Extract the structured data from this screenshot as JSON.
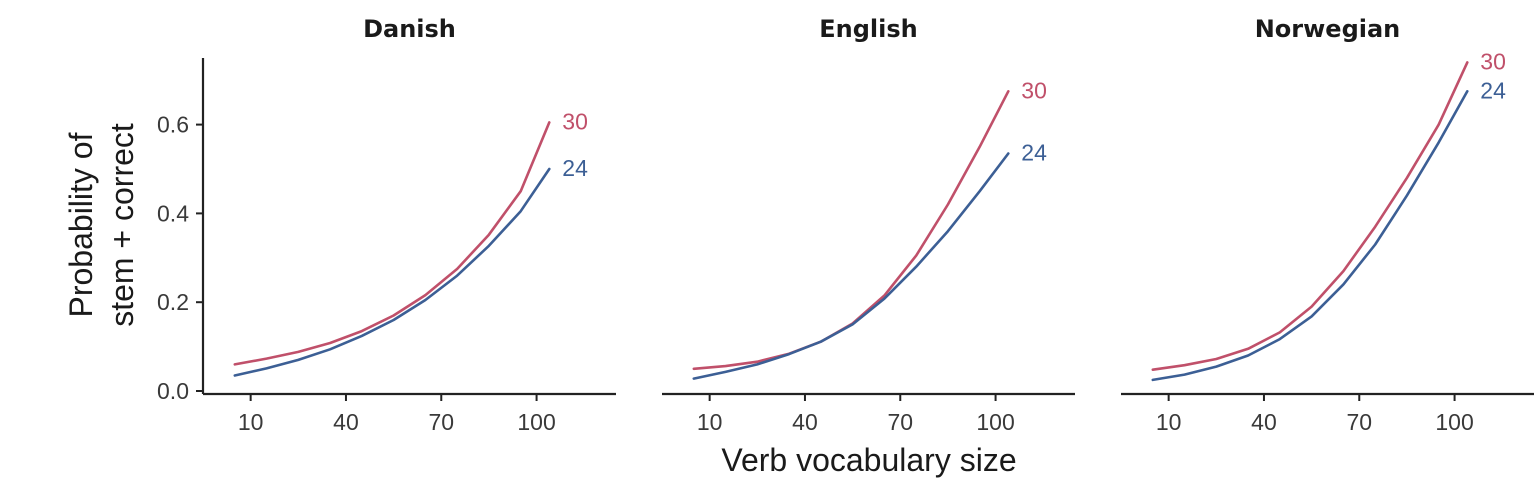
{
  "chart_data": {
    "type": "line",
    "xlabel": "Verb vocabulary size",
    "ylabel_lines": [
      "Probability of",
      "stem + correct"
    ],
    "x_ticks": [
      10,
      40,
      70,
      100
    ],
    "y_ticks": [
      "0.0",
      "0.2",
      "0.4",
      "0.6"
    ],
    "xlim": [
      -5,
      125
    ],
    "ylim": [
      0,
      0.75
    ],
    "grid": false,
    "legend": "direct line labels at line ends",
    "colors": {
      "30": "#c0506a",
      "24": "#3c5f95"
    },
    "panels": [
      {
        "title": "Danish",
        "series": [
          {
            "name": "30",
            "x": [
              5,
              15,
              25,
              35,
              45,
              55,
              65,
              75,
              85,
              95,
              104
            ],
            "y": [
              0.06,
              0.073,
              0.088,
              0.108,
              0.135,
              0.17,
              0.216,
              0.275,
              0.352,
              0.45,
              0.605
            ]
          },
          {
            "name": "24",
            "x": [
              5,
              15,
              25,
              35,
              45,
              55,
              65,
              75,
              85,
              95,
              104
            ],
            "y": [
              0.035,
              0.051,
              0.07,
              0.094,
              0.124,
              0.16,
              0.205,
              0.26,
              0.327,
              0.405,
              0.5
            ]
          }
        ]
      },
      {
        "title": "English",
        "series": [
          {
            "name": "30",
            "x": [
              5,
              15,
              25,
              35,
              45,
              55,
              65,
              75,
              85,
              95,
              104
            ],
            "y": [
              0.05,
              0.056,
              0.066,
              0.084,
              0.111,
              0.152,
              0.215,
              0.305,
              0.42,
              0.55,
              0.675
            ]
          },
          {
            "name": "24",
            "x": [
              5,
              15,
              25,
              35,
              45,
              55,
              65,
              75,
              85,
              95,
              104
            ],
            "y": [
              0.028,
              0.043,
              0.06,
              0.083,
              0.111,
              0.15,
              0.208,
              0.28,
              0.36,
              0.45,
              0.535
            ]
          }
        ]
      },
      {
        "title": "Norwegian",
        "series": [
          {
            "name": "30",
            "x": [
              5,
              15,
              25,
              35,
              45,
              55,
              65,
              75,
              85,
              95,
              104
            ],
            "y": [
              0.048,
              0.058,
              0.072,
              0.095,
              0.132,
              0.19,
              0.27,
              0.37,
              0.48,
              0.6,
              0.74
            ]
          },
          {
            "name": "24",
            "x": [
              5,
              15,
              25,
              35,
              45,
              55,
              65,
              75,
              85,
              95,
              104
            ],
            "y": [
              0.025,
              0.037,
              0.055,
              0.08,
              0.117,
              0.168,
              0.24,
              0.33,
              0.44,
              0.56,
              0.675
            ]
          }
        ]
      }
    ]
  }
}
